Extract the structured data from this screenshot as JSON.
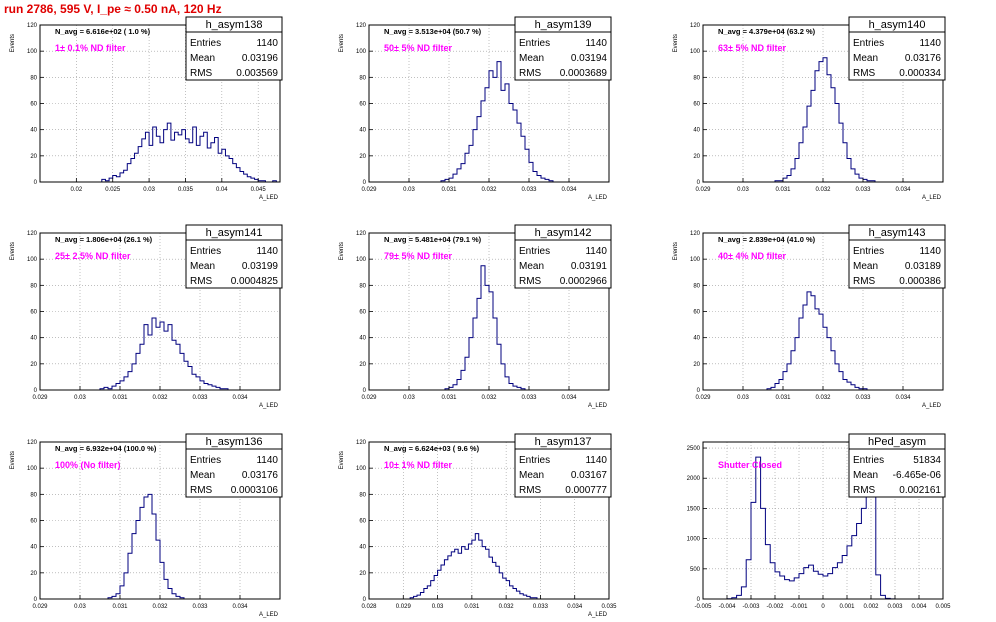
{
  "header": {
    "run_title": "run 2786,   595 V, I_pe ≈ 0.50 nA, 120 Hz"
  },
  "colors": {
    "histogram_line": "#00007f",
    "annotation_magenta": "#ff00ff",
    "title_red": "#e00000",
    "frame": "#000000",
    "grid": "#999999"
  },
  "chart_data": [
    {
      "type": "bar",
      "name": "h_asym138",
      "ylabel": "Events",
      "xlabel": "A_LED",
      "xlim": [
        0.015,
        0.048
      ],
      "ylim": [
        0,
        120
      ],
      "xticks": [
        "0.02",
        "0.025",
        "0.03",
        "0.035",
        "0.04",
        "0.045"
      ],
      "yticks": [
        "0",
        "20",
        "40",
        "60",
        "80",
        "100",
        "120"
      ],
      "nav": "N_avg = 6.616e+02 ( 1.0 %)",
      "filter": "1± 0.1% ND filter",
      "stats": {
        "title": "h_asym138",
        "entries": "1140",
        "mean": "0.03196",
        "rms": "0.003569"
      },
      "labels": {
        "entries": "Entries",
        "mean": "Mean",
        "rms": "RMS"
      },
      "x_start": 0.0235,
      "bin_width": 0.0005,
      "values": [
        2,
        1,
        3,
        5,
        4,
        7,
        9,
        14,
        18,
        22,
        27,
        33,
        38,
        28,
        42,
        35,
        30,
        40,
        45,
        32,
        38,
        36,
        40,
        33,
        30,
        42,
        28,
        35,
        38,
        26,
        30,
        34,
        22,
        25,
        20,
        18,
        14,
        11,
        8,
        6,
        4,
        3,
        2,
        1,
        1,
        0,
        0,
        1
      ]
    },
    {
      "type": "bar",
      "name": "h_asym139",
      "ylabel": "Events",
      "xlabel": "A_LED",
      "xlim": [
        0.029,
        0.035
      ],
      "ylim": [
        0,
        120
      ],
      "xticks": [
        "0.029",
        "0.03",
        "0.031",
        "0.032",
        "0.033",
        "0.034"
      ],
      "yticks": [
        "0",
        "20",
        "40",
        "60",
        "80",
        "100",
        "120"
      ],
      "nav": "N_avg = 3.513e+04 (50.7 %)",
      "filter": "50± 5% ND filter",
      "stats": {
        "title": "h_asym139",
        "entries": "1140",
        "mean": "0.03194",
        "rms": "0.0003689"
      },
      "labels": {
        "entries": "Entries",
        "mean": "Mean",
        "rms": "RMS"
      },
      "x_start": 0.0308,
      "bin_width": 0.0001,
      "values": [
        1,
        2,
        3,
        6,
        10,
        14,
        22,
        28,
        40,
        50,
        62,
        72,
        85,
        80,
        92,
        70,
        75,
        60,
        55,
        45,
        35,
        25,
        15,
        8,
        5,
        3,
        2,
        1
      ]
    },
    {
      "type": "bar",
      "name": "h_asym140",
      "ylabel": "Events",
      "xlabel": "A_LED",
      "xlim": [
        0.029,
        0.035
      ],
      "ylim": [
        0,
        120
      ],
      "xticks": [
        "0.029",
        "0.03",
        "0.031",
        "0.032",
        "0.033",
        "0.034"
      ],
      "yticks": [
        "0",
        "20",
        "40",
        "60",
        "80",
        "100",
        "120"
      ],
      "nav": "N_avg = 4.379e+04 (63.2 %)",
      "filter": "63± 5% ND filter",
      "stats": {
        "title": "h_asym140",
        "entries": "1140",
        "mean": "0.03176",
        "rms": "0.000334"
      },
      "labels": {
        "entries": "Entries",
        "mean": "Mean",
        "rms": "RMS"
      },
      "x_start": 0.0308,
      "bin_width": 0.0001,
      "values": [
        1,
        1,
        3,
        5,
        10,
        18,
        30,
        42,
        58,
        70,
        85,
        92,
        95,
        82,
        72,
        60,
        45,
        30,
        18,
        10,
        6,
        3,
        2,
        1,
        1
      ]
    },
    {
      "type": "bar",
      "name": "h_asym141",
      "ylabel": "Events",
      "xlabel": "A_LED",
      "xlim": [
        0.029,
        0.035
      ],
      "ylim": [
        0,
        120
      ],
      "xticks": [
        "0.029",
        "0.03",
        "0.031",
        "0.032",
        "0.033",
        "0.034"
      ],
      "yticks": [
        "0",
        "20",
        "40",
        "60",
        "80",
        "100",
        "120"
      ],
      "nav": "N_avg = 1.806e+04 (26.1 %)",
      "filter": "25± 2.5% ND filter",
      "stats": {
        "title": "h_asym141",
        "entries": "1140",
        "mean": "0.03199",
        "rms": "0.0004825"
      },
      "labels": {
        "entries": "Entries",
        "mean": "Mean",
        "rms": "RMS"
      },
      "x_start": 0.0305,
      "bin_width": 0.0001,
      "values": [
        1,
        2,
        1,
        3,
        5,
        7,
        10,
        14,
        20,
        28,
        35,
        50,
        42,
        55,
        48,
        52,
        45,
        50,
        38,
        35,
        28,
        22,
        18,
        12,
        10,
        7,
        5,
        4,
        3,
        2,
        1,
        1
      ]
    },
    {
      "type": "bar",
      "name": "h_asym142",
      "ylabel": "Events",
      "xlabel": "A_LED",
      "xlim": [
        0.029,
        0.035
      ],
      "ylim": [
        0,
        120
      ],
      "xticks": [
        "0.029",
        "0.03",
        "0.031",
        "0.032",
        "0.033",
        "0.034"
      ],
      "yticks": [
        "0",
        "20",
        "40",
        "60",
        "80",
        "100",
        "120"
      ],
      "nav": "N_avg = 5.481e+04 (79.1 %)",
      "filter": "79± 5% ND filter",
      "stats": {
        "title": "h_asym142",
        "entries": "1140",
        "mean": "0.03191",
        "rms": "0.0002966"
      },
      "labels": {
        "entries": "Entries",
        "mean": "Mean",
        "rms": "RMS"
      },
      "x_start": 0.0309,
      "bin_width": 0.0001,
      "values": [
        1,
        2,
        4,
        8,
        15,
        25,
        40,
        55,
        70,
        95,
        80,
        75,
        55,
        35,
        20,
        10,
        5,
        3,
        2,
        1
      ]
    },
    {
      "type": "bar",
      "name": "h_asym143",
      "ylabel": "Events",
      "xlabel": "A_LED",
      "xlim": [
        0.029,
        0.035
      ],
      "ylim": [
        0,
        120
      ],
      "xticks": [
        "0.029",
        "0.03",
        "0.031",
        "0.032",
        "0.033",
        "0.034"
      ],
      "yticks": [
        "0",
        "20",
        "40",
        "60",
        "80",
        "100",
        "120"
      ],
      "nav": "N_avg = 2.839e+04 (41.0 %)",
      "filter": "40± 4% ND filter",
      "stats": {
        "title": "h_asym143",
        "entries": "1140",
        "mean": "0.03189",
        "rms": "0.000386"
      },
      "labels": {
        "entries": "Entries",
        "mean": "Mean",
        "rms": "RMS"
      },
      "x_start": 0.0306,
      "bin_width": 0.0001,
      "values": [
        1,
        2,
        5,
        8,
        14,
        20,
        30,
        40,
        55,
        65,
        75,
        72,
        62,
        58,
        48,
        40,
        30,
        20,
        14,
        8,
        6,
        4,
        2,
        1,
        1
      ]
    },
    {
      "type": "bar",
      "name": "h_asym136",
      "ylabel": "Events",
      "xlabel": "A_LED",
      "xlim": [
        0.029,
        0.035
      ],
      "ylim": [
        0,
        120
      ],
      "xticks": [
        "0.029",
        "0.03",
        "0.031",
        "0.032",
        "0.033",
        "0.034"
      ],
      "yticks": [
        "0",
        "20",
        "40",
        "60",
        "80",
        "100",
        "120"
      ],
      "nav": "N_avg = 6.932e+04 (100.0 %)",
      "filter": "100% (No filter)",
      "stats": {
        "title": "h_asym136",
        "entries": "1140",
        "mean": "0.03176",
        "rms": "0.0003106"
      },
      "labels": {
        "entries": "Entries",
        "mean": "Mean",
        "rms": "RMS"
      },
      "x_start": 0.0307,
      "bin_width": 0.0001,
      "values": [
        1,
        2,
        4,
        10,
        20,
        35,
        50,
        60,
        70,
        78,
        80,
        65,
        45,
        28,
        15,
        8,
        4,
        2,
        1
      ]
    },
    {
      "type": "bar",
      "name": "h_asym137",
      "ylabel": "Events",
      "xlabel": "A_LED",
      "xlim": [
        0.028,
        0.035
      ],
      "ylim": [
        0,
        120
      ],
      "xticks": [
        "0.028",
        "0.029",
        "0.03",
        "0.031",
        "0.032",
        "0.033",
        "0.034",
        "0.035"
      ],
      "yticks": [
        "0",
        "20",
        "40",
        "60",
        "80",
        "100",
        "120"
      ],
      "nav": "N_avg = 6.624e+03 ( 9.6 %)",
      "filter": "10± 1% ND filter",
      "stats": {
        "title": "h_asym137",
        "entries": "1140",
        "mean": "0.03167",
        "rms": "0.000777"
      },
      "labels": {
        "entries": "Entries",
        "mean": "Mean",
        "rms": "RMS"
      },
      "x_start": 0.0292,
      "bin_width": 0.0001,
      "values": [
        1,
        2,
        3,
        5,
        8,
        10,
        14,
        18,
        22,
        26,
        30,
        33,
        36,
        38,
        35,
        40,
        38,
        42,
        45,
        50,
        45,
        40,
        38,
        32,
        28,
        25,
        20,
        16,
        14,
        10,
        8,
        6,
        4,
        3,
        2,
        1,
        1
      ]
    },
    {
      "type": "bar",
      "name": "hPed_asym",
      "ylabel": "",
      "xlabel": "",
      "xlim": [
        -0.005,
        0.005
      ],
      "ylim": [
        0,
        2600
      ],
      "xticks": [
        "-0.005",
        "-0.004",
        "-0.003",
        "-0.002",
        "-0.001",
        "0",
        "0.001",
        "0.002",
        "0.003",
        "0.004",
        "0.005"
      ],
      "yticks": [
        "0",
        "500",
        "1000",
        "1500",
        "2000",
        "2500"
      ],
      "nav": "",
      "filter": "Shutter Closed",
      "stats": {
        "title": "hPed_asym",
        "entries": "51834",
        "mean": "-6.465e-06",
        "rms": "0.002161"
      },
      "labels": {
        "entries": "Entries",
        "mean": "Mean",
        "rms": "RMS"
      },
      "x_start": -0.004,
      "bin_width": 0.0002,
      "values": [
        5,
        20,
        60,
        200,
        650,
        1600,
        2350,
        1500,
        900,
        600,
        450,
        380,
        320,
        300,
        350,
        420,
        520,
        560,
        460,
        410,
        380,
        420,
        520,
        600,
        720,
        880,
        1050,
        1250,
        1500,
        1900,
        1800,
        400,
        60,
        10,
        2,
        1
      ]
    }
  ]
}
